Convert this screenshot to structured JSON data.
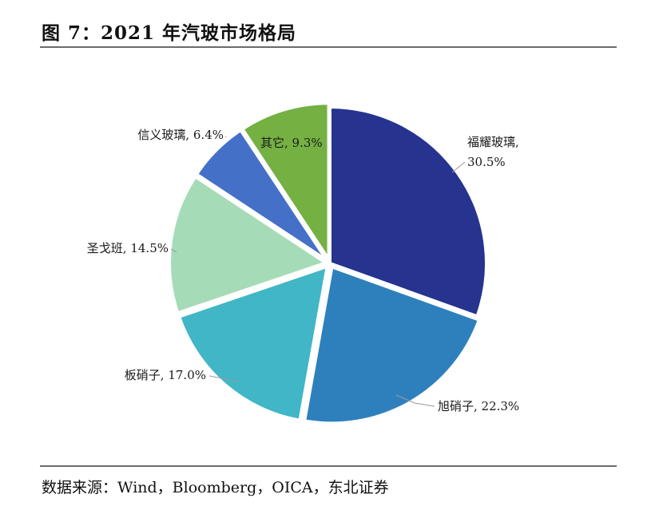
{
  "figure": {
    "title": "图 7：2021 年汽玻市场格局",
    "source": "数据来源：Wind，Bloomberg，OICA，东北证券"
  },
  "chart_data": {
    "type": "pie",
    "title": "图 7：2021 年汽玻市场格局",
    "unit": "%",
    "start_angle_deg": 0,
    "direction": "clockwise",
    "slices": [
      {
        "name": "福耀玻璃",
        "value": 30.5,
        "label": "福耀玻璃,",
        "value_label": "30.5%",
        "color": "#26338f"
      },
      {
        "name": "旭硝子",
        "value": 22.3,
        "label": "旭硝子, 22.3%",
        "color": "#2e80bd"
      },
      {
        "name": "板硝子",
        "value": 17.0,
        "label": "板硝子, 17.0%",
        "color": "#40b6c6"
      },
      {
        "name": "圣戈班",
        "value": 14.5,
        "label": "圣戈班, 14.5%",
        "color": "#a6dbb8"
      },
      {
        "name": "信义玻璃",
        "value": 6.4,
        "label": "信义玻璃, 6.4%",
        "color": "#4470c8"
      },
      {
        "name": "其它",
        "value": 9.3,
        "label": "其它, 9.3%",
        "color": "#75b043"
      }
    ]
  }
}
